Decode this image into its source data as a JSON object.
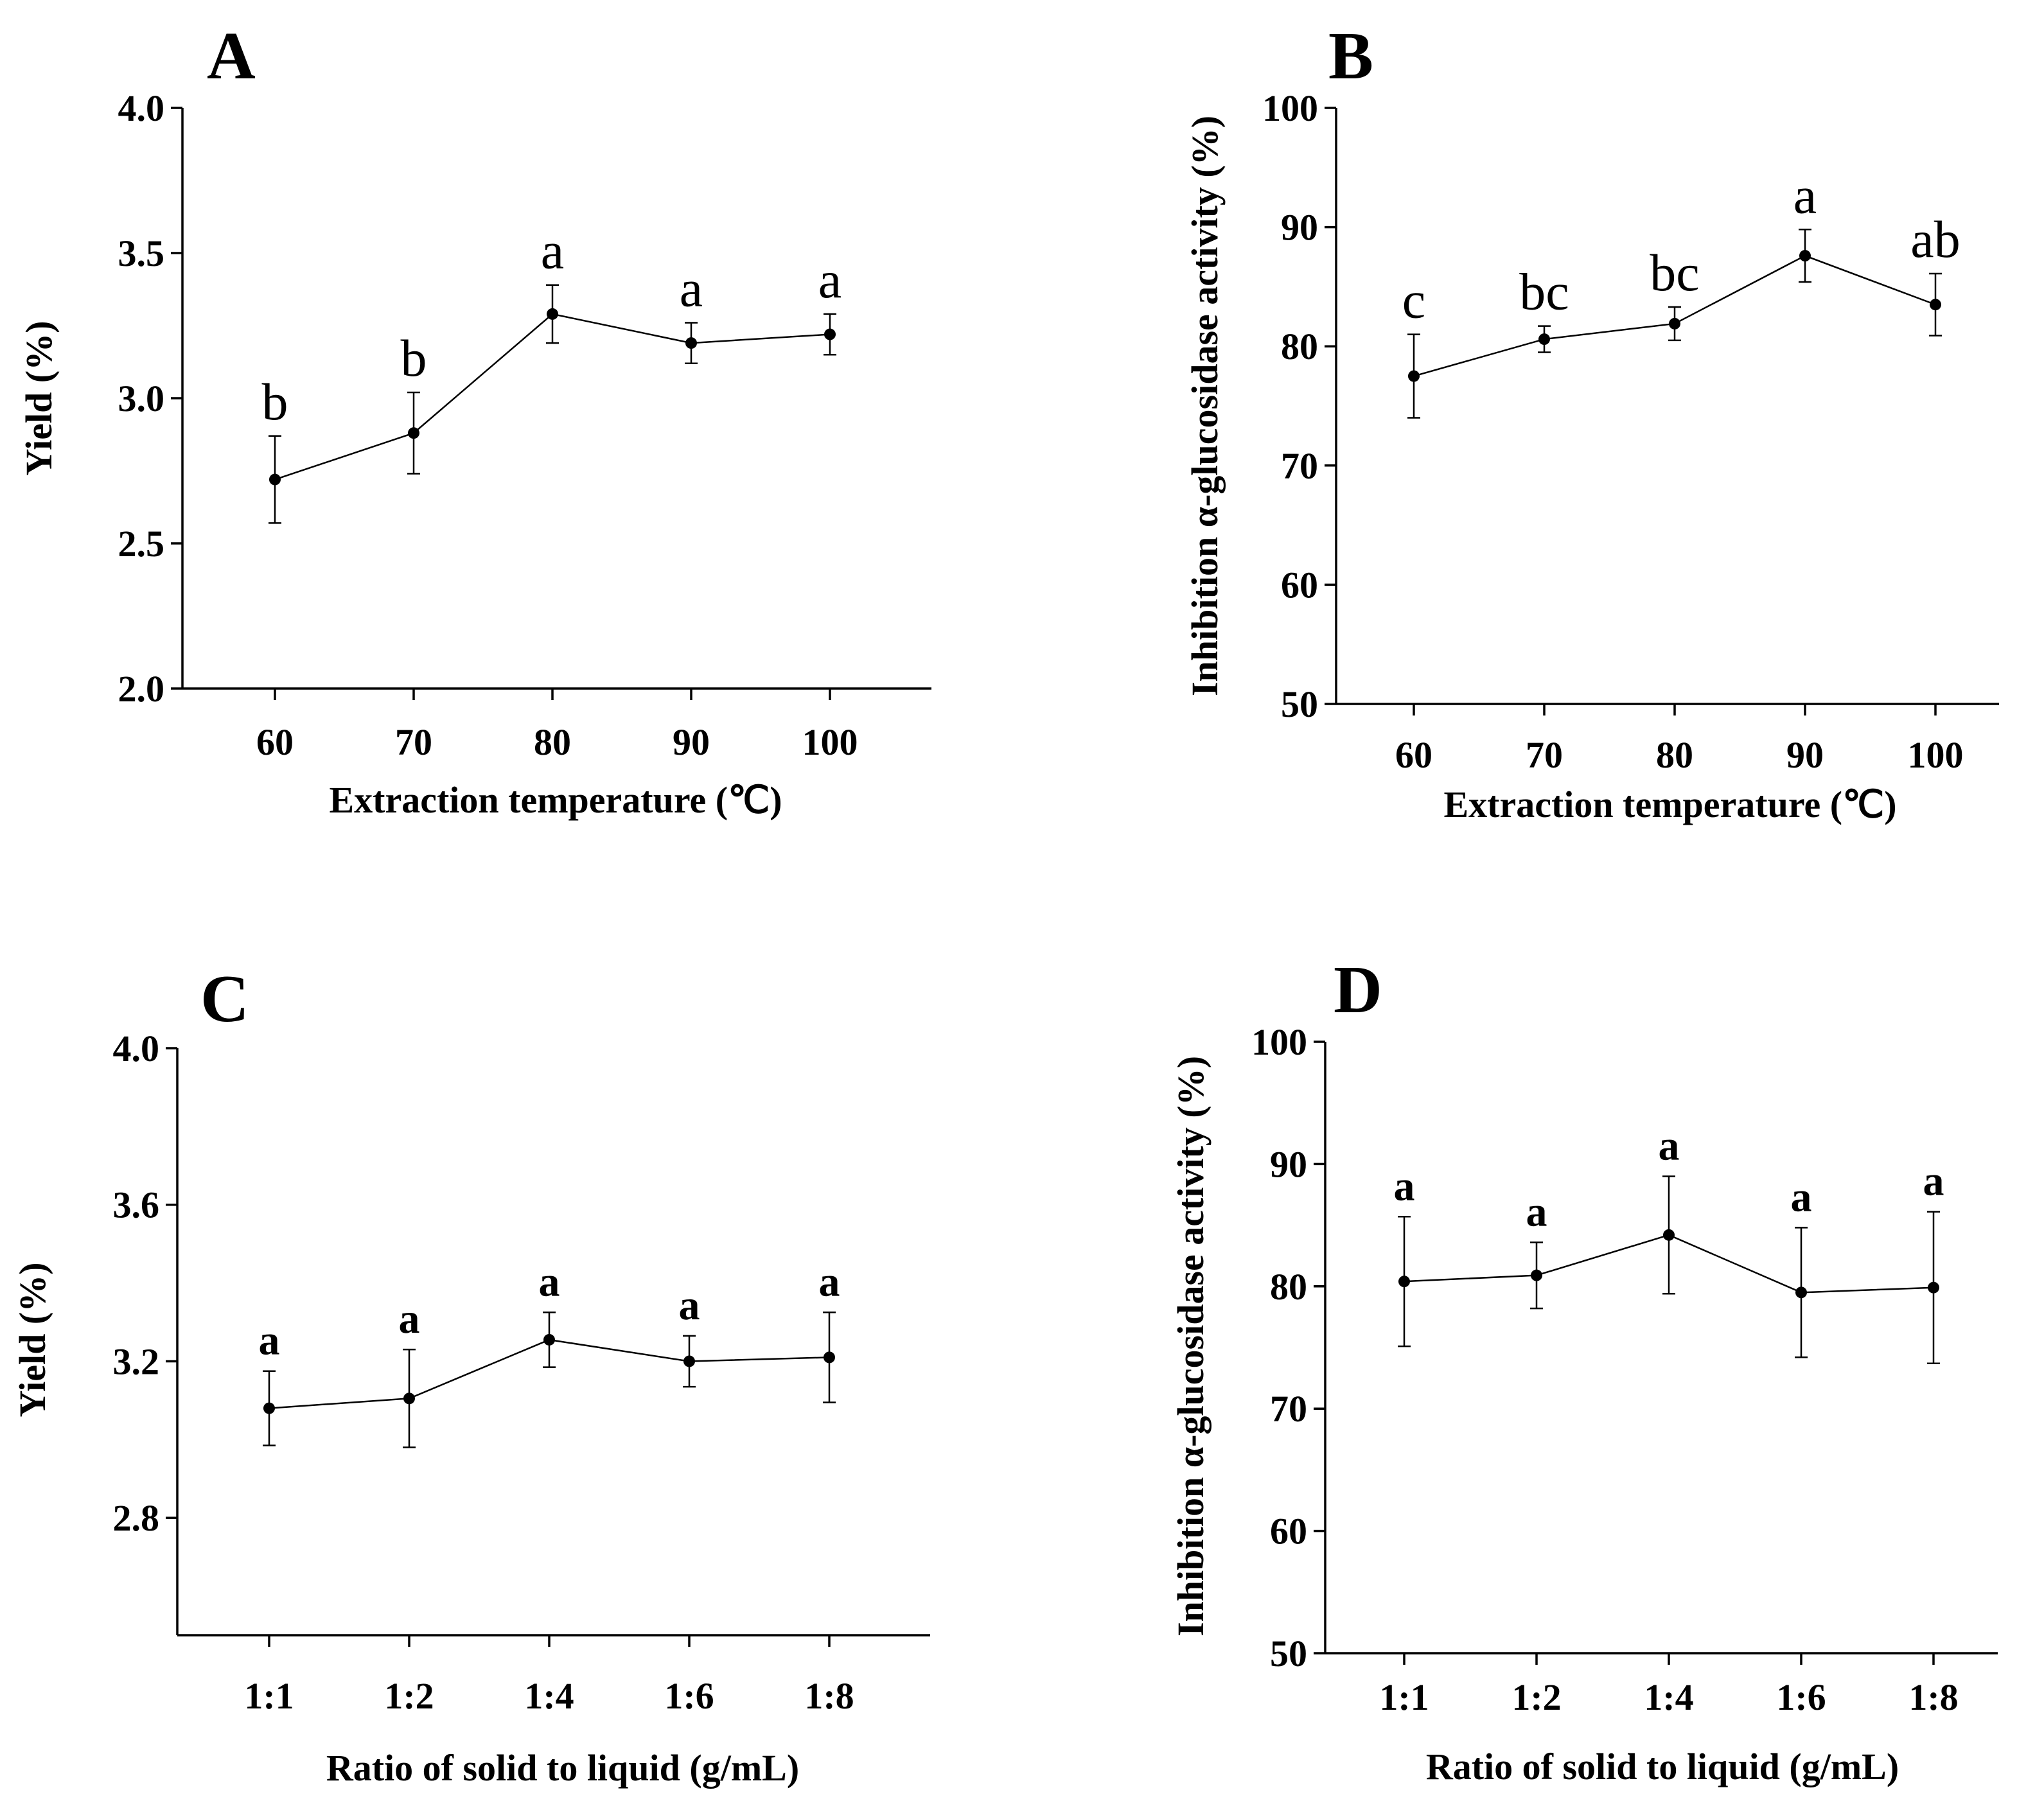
{
  "chart_data": [
    {
      "panel": "A",
      "type": "line",
      "title": "",
      "xlabel": "Extraction temperature (℃)",
      "ylabel": "Yield (%)",
      "categories": [
        "60",
        "70",
        "80",
        "90",
        "100"
      ],
      "values": [
        2.72,
        2.88,
        3.29,
        3.19,
        3.22
      ],
      "errors": [
        0.15,
        0.14,
        0.1,
        0.07,
        0.07
      ],
      "significance": [
        "b",
        "b",
        "a",
        "a",
        "a"
      ],
      "letter_style": "regular",
      "ylim": [
        2.0,
        4.0
      ],
      "yticks": [
        "2.0",
        "2.5",
        "3.0",
        "3.5",
        "4.0"
      ]
    },
    {
      "panel": "B",
      "type": "line",
      "title": "",
      "xlabel": "Extraction temperature (℃)",
      "ylabel": "Inhibition α-glucosidase activity (%)",
      "categories": [
        "60",
        "70",
        "80",
        "90",
        "100"
      ],
      "values": [
        77.5,
        80.6,
        81.9,
        87.6,
        83.5
      ],
      "errors": [
        3.5,
        1.1,
        1.4,
        2.2,
        2.6
      ],
      "significance": [
        "c",
        "bc",
        "bc",
        "a",
        "ab"
      ],
      "letter_style": "regular",
      "ylim": [
        50,
        100
      ],
      "yticks": [
        "50",
        "60",
        "70",
        "80",
        "90",
        "100"
      ]
    },
    {
      "panel": "C",
      "type": "line",
      "title": "",
      "xlabel": "Ratio of solid to liquid (g/mL)",
      "ylabel": "Yield (%)",
      "categories": [
        "1:1",
        "1:2",
        "1:4",
        "1:6",
        "1:8"
      ],
      "values": [
        3.08,
        3.105,
        3.255,
        3.2,
        3.21
      ],
      "errors": [
        0.095,
        0.125,
        0.07,
        0.065,
        0.115
      ],
      "significance": [
        "a",
        "a",
        "a",
        "a",
        "a"
      ],
      "letter_style": "bold",
      "ylim": [
        2.5,
        4.0
      ],
      "yticks": [
        "2.8",
        "3.2",
        "3.6",
        "4.0"
      ]
    },
    {
      "panel": "D",
      "type": "line",
      "title": "",
      "xlabel": "Ratio of solid to liquid (g/mL)",
      "ylabel": "Inhibition α-glucosidase activity (%)",
      "categories": [
        "1:1",
        "1:2",
        "1:4",
        "1:6",
        "1:8"
      ],
      "values": [
        80.4,
        80.9,
        84.2,
        79.5,
        79.9
      ],
      "errors": [
        5.3,
        2.7,
        4.8,
        5.3,
        6.2
      ],
      "significance": [
        "a",
        "a",
        "a",
        "a",
        "a"
      ],
      "letter_style": "bold",
      "ylim": [
        50,
        100
      ],
      "yticks": [
        "50",
        "60",
        "70",
        "80",
        "90",
        "100"
      ]
    }
  ]
}
